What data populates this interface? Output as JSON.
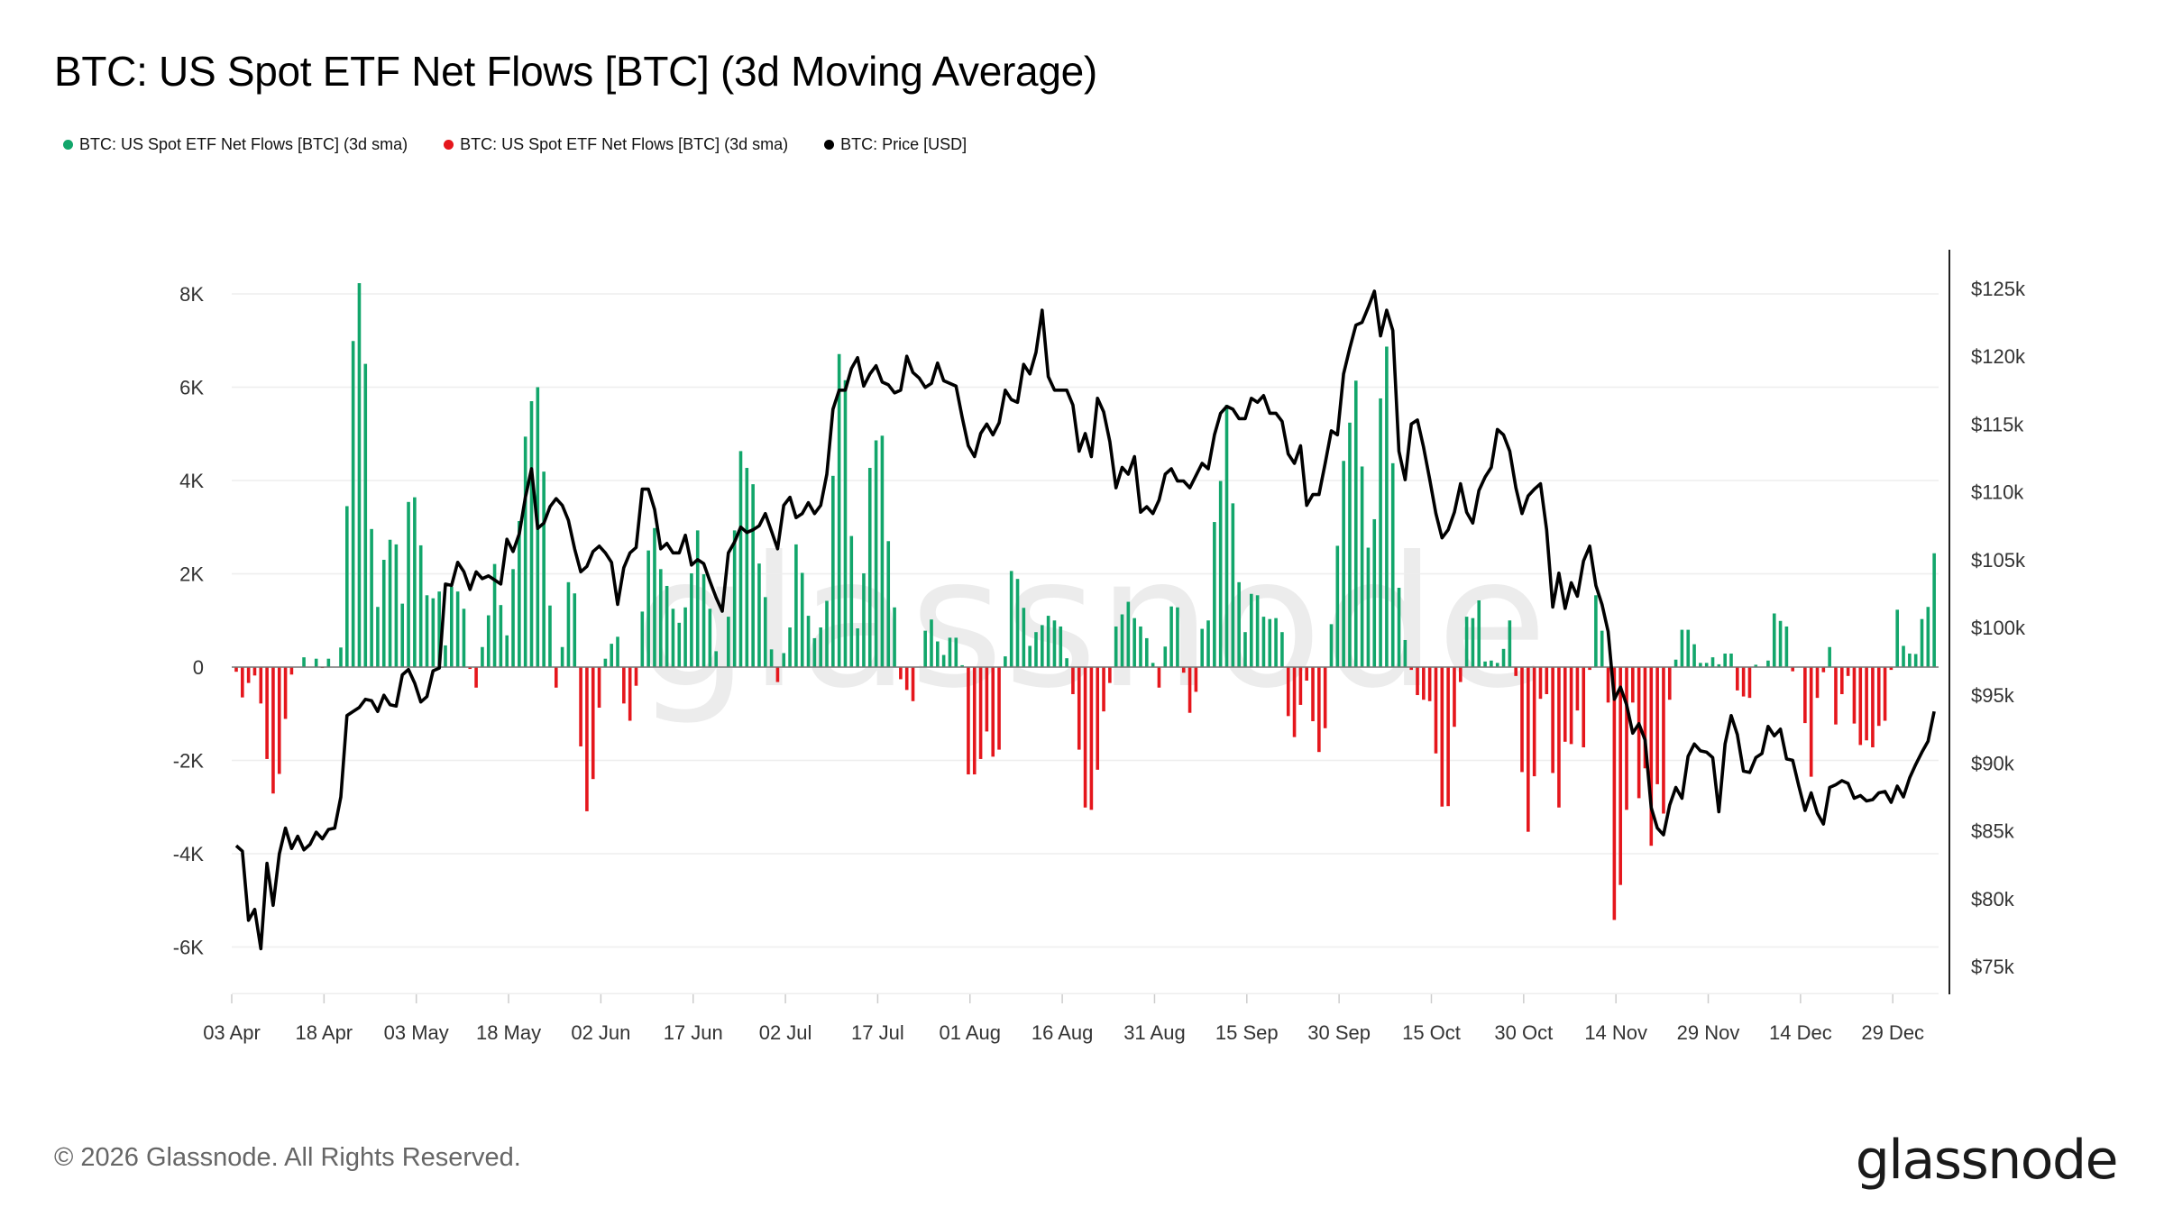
{
  "title": "BTC: US Spot ETF Net Flows [BTC] (3d Moving Average)",
  "legend": [
    {
      "label": "BTC: US Spot ETF Net Flows [BTC] (3d sma)",
      "color": "#12a66b"
    },
    {
      "label": "BTC: US Spot ETF Net Flows [BTC] (3d sma)",
      "color": "#e5161c"
    },
    {
      "label": "BTC: Price [USD]",
      "color": "#000000"
    }
  ],
  "footer": {
    "copyright": "© 2026 Glassnode. All Rights Reserved.",
    "logo": "glassnode",
    "watermark": "glassnode"
  },
  "chart_data": {
    "type": "bar+line",
    "title": "BTC: US Spot ETF Net Flows [BTC] (3d Moving Average)",
    "grid": true,
    "legend_position": "top-left",
    "x_ticks": [
      "03 Apr",
      "18 Apr",
      "03 May",
      "18 May",
      "02 Jun",
      "17 Jun",
      "02 Jul",
      "17 Jul",
      "01 Aug",
      "16 Aug",
      "31 Aug",
      "15 Sep",
      "30 Sep",
      "15 Oct",
      "30 Oct",
      "14 Nov",
      "29 Nov",
      "14 Dec",
      "29 Dec"
    ],
    "left_axis": {
      "ticks": [
        -6000,
        -4000,
        -2000,
        0,
        2000,
        4000,
        6000,
        8000
      ],
      "tick_labels": [
        "-6K",
        "-4K",
        "-2K",
        "0",
        "2K",
        "4K",
        "6K",
        "8K"
      ],
      "range": [
        -7000,
        8500
      ]
    },
    "right_axis": {
      "ticks": [
        75,
        80,
        85,
        90,
        95,
        100,
        105,
        110,
        115,
        120,
        125
      ],
      "tick_labels": [
        "$75k",
        "$80k",
        "$85k",
        "$90k",
        "$95k",
        "$100k",
        "$105k",
        "$110k",
        "$115k",
        "$120k",
        "$125k"
      ],
      "range": [
        72.5,
        128
      ]
    },
    "colors": {
      "positive": "#12a66b",
      "negative": "#e5161c",
      "price": "#000000"
    },
    "x": [
      "03 Apr",
      "04 Apr",
      "05 Apr",
      "06 Apr",
      "07 Apr",
      "08 Apr",
      "09 Apr",
      "10 Apr",
      "11 Apr",
      "12 Apr",
      "13 Apr",
      "14 Apr",
      "15 Apr",
      "16 Apr",
      "17 Apr",
      "18 Apr",
      "19 Apr",
      "20 Apr",
      "21 Apr",
      "22 Apr",
      "23 Apr",
      "24 Apr",
      "25 Apr",
      "26 Apr",
      "27 Apr",
      "28 Apr",
      "29 Apr",
      "30 Apr",
      "01 May",
      "02 May",
      "03 May",
      "04 May",
      "05 May",
      "06 May",
      "07 May",
      "08 May",
      "09 May",
      "10 May",
      "11 May",
      "12 May",
      "13 May",
      "14 May",
      "15 May",
      "16 May",
      "17 May",
      "18 May",
      "19 May",
      "20 May",
      "21 May",
      "22 May",
      "23 May",
      "24 May",
      "25 May",
      "26 May",
      "27 May",
      "28 May",
      "29 May",
      "30 May",
      "31 May",
      "01 Jun",
      "02 Jun",
      "03 Jun",
      "04 Jun",
      "05 Jun",
      "06 Jun",
      "07 Jun",
      "08 Jun",
      "09 Jun",
      "10 Jun",
      "11 Jun",
      "12 Jun",
      "13 Jun",
      "14 Jun",
      "15 Jun",
      "16 Jun",
      "17 Jun",
      "18 Jun",
      "19 Jun",
      "20 Jun",
      "21 Jun",
      "22 Jun",
      "23 Jun",
      "24 Jun",
      "25 Jun",
      "26 Jun",
      "27 Jun",
      "28 Jun",
      "29 Jun",
      "30 Jun",
      "01 Jul",
      "02 Jul",
      "03 Jul",
      "04 Jul",
      "05 Jul",
      "06 Jul",
      "07 Jul",
      "08 Jul",
      "09 Jul",
      "10 Jul",
      "11 Jul",
      "12 Jul",
      "13 Jul",
      "14 Jul",
      "15 Jul",
      "16 Jul",
      "17 Jul",
      "18 Jul",
      "19 Jul",
      "20 Jul",
      "21 Jul",
      "22 Jul",
      "23 Jul",
      "24 Jul",
      "25 Jul",
      "26 Jul",
      "27 Jul",
      "28 Jul",
      "29 Jul",
      "30 Jul",
      "31 Jul",
      "01 Aug",
      "02 Aug",
      "03 Aug",
      "04 Aug",
      "05 Aug",
      "06 Aug",
      "07 Aug",
      "08 Aug",
      "09 Aug",
      "10 Aug",
      "11 Aug",
      "12 Aug",
      "13 Aug",
      "14 Aug",
      "15 Aug",
      "16 Aug",
      "17 Aug",
      "18 Aug",
      "19 Aug",
      "20 Aug",
      "21 Aug",
      "22 Aug",
      "23 Aug",
      "24 Aug",
      "25 Aug",
      "26 Aug",
      "27 Aug",
      "28 Aug",
      "29 Aug",
      "30 Aug",
      "31 Aug",
      "01 Sep",
      "02 Sep",
      "03 Sep",
      "04 Sep",
      "05 Sep",
      "06 Sep",
      "07 Sep",
      "08 Sep",
      "09 Sep",
      "10 Sep",
      "11 Sep",
      "12 Sep",
      "13 Sep",
      "14 Sep",
      "15 Sep",
      "16 Sep",
      "17 Sep",
      "18 Sep",
      "19 Sep",
      "20 Sep",
      "21 Sep",
      "22 Sep",
      "23 Sep",
      "24 Sep",
      "25 Sep",
      "26 Sep",
      "27 Sep",
      "28 Sep",
      "29 Sep",
      "30 Sep",
      "01 Oct",
      "02 Oct",
      "03 Oct",
      "04 Oct",
      "05 Oct",
      "06 Oct",
      "07 Oct",
      "08 Oct",
      "09 Oct",
      "10 Oct",
      "11 Oct",
      "12 Oct",
      "13 Oct",
      "14 Oct",
      "15 Oct",
      "16 Oct",
      "17 Oct",
      "18 Oct",
      "19 Oct",
      "20 Oct",
      "21 Oct",
      "22 Oct",
      "23 Oct",
      "24 Oct",
      "25 Oct",
      "26 Oct",
      "27 Oct",
      "28 Oct",
      "29 Oct",
      "30 Oct",
      "31 Oct",
      "01 Nov",
      "02 Nov",
      "03 Nov",
      "04 Nov",
      "05 Nov",
      "06 Nov",
      "07 Nov",
      "08 Nov",
      "09 Nov",
      "10 Nov",
      "11 Nov",
      "12 Nov",
      "13 Nov",
      "14 Nov",
      "15 Nov",
      "16 Nov",
      "17 Nov",
      "18 Nov",
      "19 Nov",
      "20 Nov",
      "21 Nov",
      "22 Nov",
      "23 Nov",
      "24 Nov",
      "25 Nov",
      "26 Nov",
      "27 Nov",
      "28 Nov",
      "29 Nov",
      "30 Nov",
      "01 Dec",
      "02 Dec",
      "03 Dec",
      "04 Dec",
      "05 Dec",
      "06 Dec",
      "07 Dec",
      "08 Dec",
      "09 Dec",
      "10 Dec",
      "11 Dec",
      "12 Dec",
      "13 Dec",
      "14 Dec",
      "15 Dec",
      "16 Dec",
      "17 Dec",
      "18 Dec",
      "19 Dec",
      "20 Dec",
      "21 Dec",
      "22 Dec",
      "23 Dec",
      "24 Dec",
      "25 Dec",
      "26 Dec",
      "27 Dec",
      "28 Dec",
      "29 Dec",
      "30 Dec",
      "31 Dec",
      "01 Jan",
      "02 Jan",
      "03 Jan",
      "04 Jan"
    ],
    "series": [
      {
        "name": "BTC: US Spot ETF Net Flows [BTC] (3d sma)",
        "axis": "left",
        "kind": "bar",
        "values": [
          -100,
          -650,
          -340,
          -180,
          -780,
          -1970,
          -2710,
          -2290,
          -1110,
          -160,
          0,
          210,
          0,
          180,
          -20,
          180,
          0,
          420,
          3450,
          6990,
          8230,
          6500,
          2960,
          1290,
          2300,
          2730,
          2630,
          1360,
          3540,
          3640,
          2610,
          1540,
          1475,
          1620,
          465,
          1720,
          1620,
          1250,
          -40,
          -440,
          430,
          1110,
          2210,
          1330,
          680,
          2100,
          3130,
          4940,
          5700,
          6000,
          4190,
          1320,
          -440,
          430,
          1820,
          1580,
          -1700,
          -3090,
          -2400,
          -870,
          180,
          500,
          650,
          -780,
          -1150,
          -400,
          1190,
          2500,
          2980,
          2100,
          1740,
          1250,
          950,
          1280,
          2010,
          2930,
          1990,
          1250,
          340,
          0,
          1080,
          2930,
          4630,
          4270,
          3920,
          2220,
          1500,
          380,
          -320,
          300,
          850,
          2630,
          2020,
          1100,
          620,
          850,
          1420,
          4100,
          6710,
          6150,
          2810,
          830,
          2010,
          4270,
          4860,
          4960,
          2700,
          1280,
          -260,
          -490,
          -730,
          0,
          780,
          1020,
          550,
          260,
          630,
          630,
          40,
          -2300,
          -2300,
          -1970,
          -1380,
          -1920,
          -1770,
          230,
          2060,
          1890,
          1270,
          455,
          750,
          900,
          1100,
          1000,
          870,
          190,
          -580,
          -1770,
          -3010,
          -3060,
          -2200,
          -950,
          -340,
          870,
          1130,
          1400,
          1050,
          870,
          620,
          90,
          -440,
          440,
          1300,
          1280,
          -120,
          -980,
          -530,
          820,
          1000,
          3110,
          3990,
          5620,
          3510,
          1820,
          750,
          1570,
          1540,
          1080,
          1030,
          1050,
          750,
          -1050,
          -1500,
          -810,
          -290,
          -1160,
          -1820,
          -1310,
          920,
          2600,
          4420,
          5240,
          6140,
          4300,
          2560,
          3170,
          5760,
          6870,
          4370,
          1700,
          580,
          -60,
          -600,
          -700,
          -730,
          -1850,
          -2990,
          -2980,
          -1280,
          -320,
          1080,
          1050,
          1430,
          120,
          140,
          90,
          390,
          1000,
          -190,
          -2250,
          -3530,
          -2340,
          -680,
          -580,
          -2270,
          -3010,
          -1600,
          -1650,
          -930,
          -1720,
          -60,
          1540,
          780,
          -760,
          -5420,
          -4670,
          -3060,
          -760,
          -2810,
          -2170,
          -3830,
          -2510,
          -3140,
          -700,
          160,
          800,
          800,
          490,
          90,
          90,
          210,
          60,
          290,
          290,
          -500,
          -630,
          -660,
          50,
          0,
          140,
          1150,
          990,
          870,
          -90,
          10,
          -1200,
          -2350,
          -660,
          -110,
          430,
          -1230,
          -580,
          -190,
          -1210,
          -1670,
          -1570,
          -1720,
          -1260,
          -1150,
          -60,
          1230,
          455,
          290,
          280,
          1030,
          1290,
          2440
        ]
      },
      {
        "name": "BTC: Price [USD]",
        "axis": "right",
        "kind": "line",
        "values": [
          83.9,
          83.5,
          78.4,
          79.2,
          76.3,
          82.6,
          79.5,
          83.3,
          85.2,
          83.7,
          84.6,
          83.6,
          84.0,
          84.9,
          84.4,
          85.1,
          85.2,
          87.5,
          93.5,
          93.8,
          94.1,
          94.7,
          94.6,
          93.8,
          95.0,
          94.3,
          94.2,
          96.5,
          96.9,
          95.9,
          94.5,
          94.9,
          96.8,
          97.0,
          103.2,
          103.1,
          104.8,
          104.1,
          102.8,
          104.1,
          103.6,
          103.8,
          103.5,
          103.2,
          106.5,
          105.6,
          106.9,
          109.6,
          111.7,
          107.3,
          107.7,
          108.9,
          109.5,
          109.0,
          107.9,
          105.8,
          104.1,
          104.5,
          105.6,
          106.0,
          105.5,
          104.8,
          101.7,
          104.4,
          105.5,
          105.9,
          110.2,
          110.2,
          108.7,
          105.8,
          106.2,
          105.5,
          105.5,
          106.8,
          104.6,
          105.0,
          104.7,
          103.4,
          102.2,
          101.2,
          105.5,
          106.3,
          107.4,
          107.0,
          107.2,
          107.5,
          108.4,
          107.1,
          105.8,
          109.0,
          109.6,
          108.1,
          108.4,
          109.2,
          108.4,
          109.0,
          111.3,
          116.1,
          117.5,
          117.5,
          119.1,
          119.9,
          117.8,
          118.7,
          119.3,
          118.1,
          117.9,
          117.3,
          117.5,
          120.0,
          118.8,
          118.4,
          117.7,
          118.0,
          119.5,
          118.2,
          118.0,
          117.8,
          115.5,
          113.4,
          112.6,
          114.3,
          115.0,
          114.2,
          115.1,
          117.5,
          116.8,
          116.6,
          119.4,
          118.7,
          120.3,
          123.4,
          118.5,
          117.5,
          117.5,
          117.5,
          116.4,
          113.0,
          114.3,
          112.6,
          116.9,
          115.9,
          113.7,
          110.3,
          111.8,
          111.3,
          112.6,
          108.5,
          108.9,
          108.4,
          109.4,
          111.3,
          111.7,
          110.8,
          110.8,
          110.3,
          111.2,
          112.1,
          111.7,
          114.2,
          115.8,
          116.3,
          116.1,
          115.4,
          115.4,
          116.9,
          116.6,
          117.1,
          115.8,
          115.8,
          115.2,
          112.8,
          112.1,
          113.4,
          109.0,
          109.8,
          109.8,
          112.1,
          114.5,
          114.2,
          118.7,
          120.6,
          122.3,
          122.5,
          123.6,
          124.8,
          121.5,
          123.4,
          121.9,
          113.0,
          110.9,
          115.0,
          115.3,
          113.3,
          110.9,
          108.4,
          106.6,
          107.2,
          108.5,
          110.6,
          108.5,
          107.7,
          110.1,
          111.1,
          111.8,
          114.6,
          114.2,
          113.0,
          110.3,
          108.4,
          109.7,
          110.2,
          110.6,
          107.2,
          101.5,
          104.0,
          101.4,
          103.3,
          102.3,
          104.9,
          106.0,
          103.1,
          101.7,
          99.7,
          94.7,
          95.6,
          94.3,
          92.2,
          92.9,
          91.7,
          86.7,
          85.2,
          84.7,
          86.9,
          88.2,
          87.4,
          90.5,
          91.4,
          90.9,
          90.8,
          90.4,
          86.4,
          91.4,
          93.5,
          92.1,
          89.4,
          89.3,
          90.4,
          90.7,
          92.7,
          92.0,
          92.5,
          90.3,
          90.2,
          88.3,
          86.5,
          87.8,
          86.3,
          85.5,
          88.2,
          88.4,
          88.7,
          88.5,
          87.4,
          87.6,
          87.2,
          87.3,
          87.8,
          87.9,
          87.1,
          88.3,
          87.5,
          88.9,
          89.9,
          90.8,
          91.6,
          93.8
        ]
      }
    ]
  }
}
